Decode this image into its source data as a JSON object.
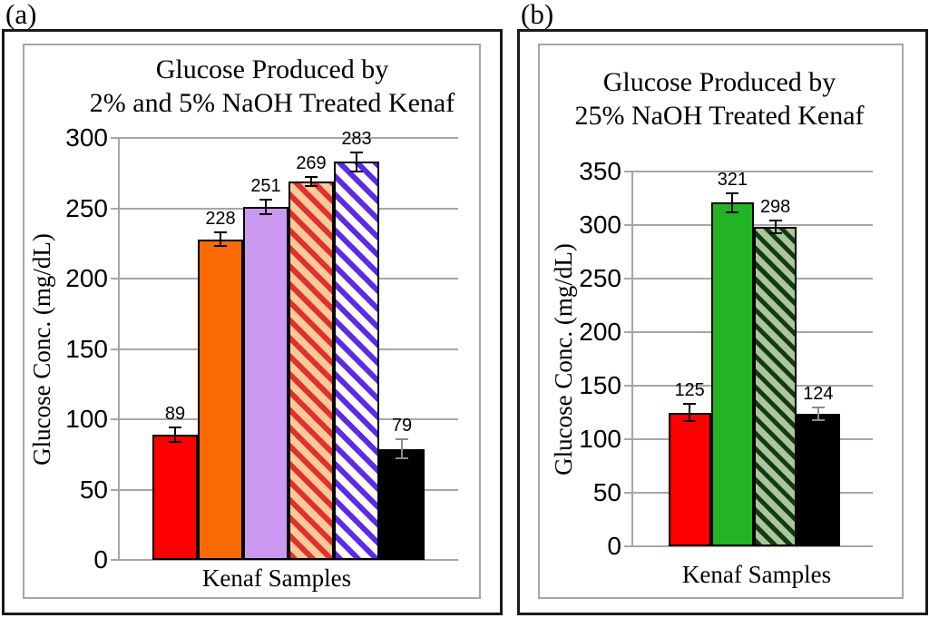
{
  "figure": {
    "panel_tags": [
      "(a)",
      "(b)"
    ]
  },
  "style": {
    "gridline_color": "#a6a6a6",
    "axis_color": "#a6a6a6",
    "outer_frame_color": "#1a1a1a",
    "inner_frame_color": "#a6a6a6",
    "bar_border_color": "#000000",
    "text_color": "#000000"
  },
  "chart_data": [
    {
      "type": "bar",
      "title_lines": [
        "Glucose Produced by",
        "2% and 5% NaOH Treated Kenaf"
      ],
      "ylabel": "Glucose Conc. (mg/dL)",
      "xlabel": "Kenaf Samples",
      "ylim": [
        0,
        300
      ],
      "ytick_step": 50,
      "grid": true,
      "legend": "none",
      "bars": [
        {
          "label": "89",
          "value": 89,
          "error": 5,
          "fill": "#fe0000",
          "stripe": null,
          "error_color": "#000000"
        },
        {
          "label": "228",
          "value": 228,
          "error": 5,
          "fill": "#fb6a02",
          "stripe": null,
          "error_color": "#000000"
        },
        {
          "label": "251",
          "value": 251,
          "error": 5,
          "fill": "#cb99f2",
          "stripe": null,
          "error_color": "#000000"
        },
        {
          "label": "269",
          "value": 269,
          "error": 3,
          "fill": "#fbcb95",
          "stripe": "#e03031",
          "error_color": "#000000"
        },
        {
          "label": "283",
          "value": 283,
          "error": 7,
          "fill": "#ffffff",
          "stripe": "#5b2be8",
          "error_color": "#000000"
        },
        {
          "label": "79",
          "value": 79,
          "error": 7,
          "fill": "#000000",
          "stripe": null,
          "error_color": "#8c8c8c"
        }
      ]
    },
    {
      "type": "bar",
      "title_lines": [
        "Glucose Produced by",
        "25% NaOH Treated Kenaf"
      ],
      "ylabel": "Glucose Conc. (mg/dL)",
      "xlabel": "Kenaf Samples",
      "ylim": [
        0,
        350
      ],
      "ytick_step": 50,
      "grid": true,
      "legend": "none",
      "bars": [
        {
          "label": "125",
          "value": 125,
          "error": 8,
          "fill": "#fe0000",
          "stripe": null,
          "error_color": "#000000"
        },
        {
          "label": "321",
          "value": 321,
          "error": 9,
          "fill": "#22b422",
          "stripe": null,
          "error_color": "#000000"
        },
        {
          "label": "298",
          "value": 298,
          "error": 6,
          "fill": "#afc49e",
          "stripe": "#0f3d12",
          "error_color": "#000000"
        },
        {
          "label": "124",
          "value": 124,
          "error": 6,
          "fill": "#000000",
          "stripe": null,
          "error_color": "#8c8c8c"
        }
      ]
    }
  ]
}
